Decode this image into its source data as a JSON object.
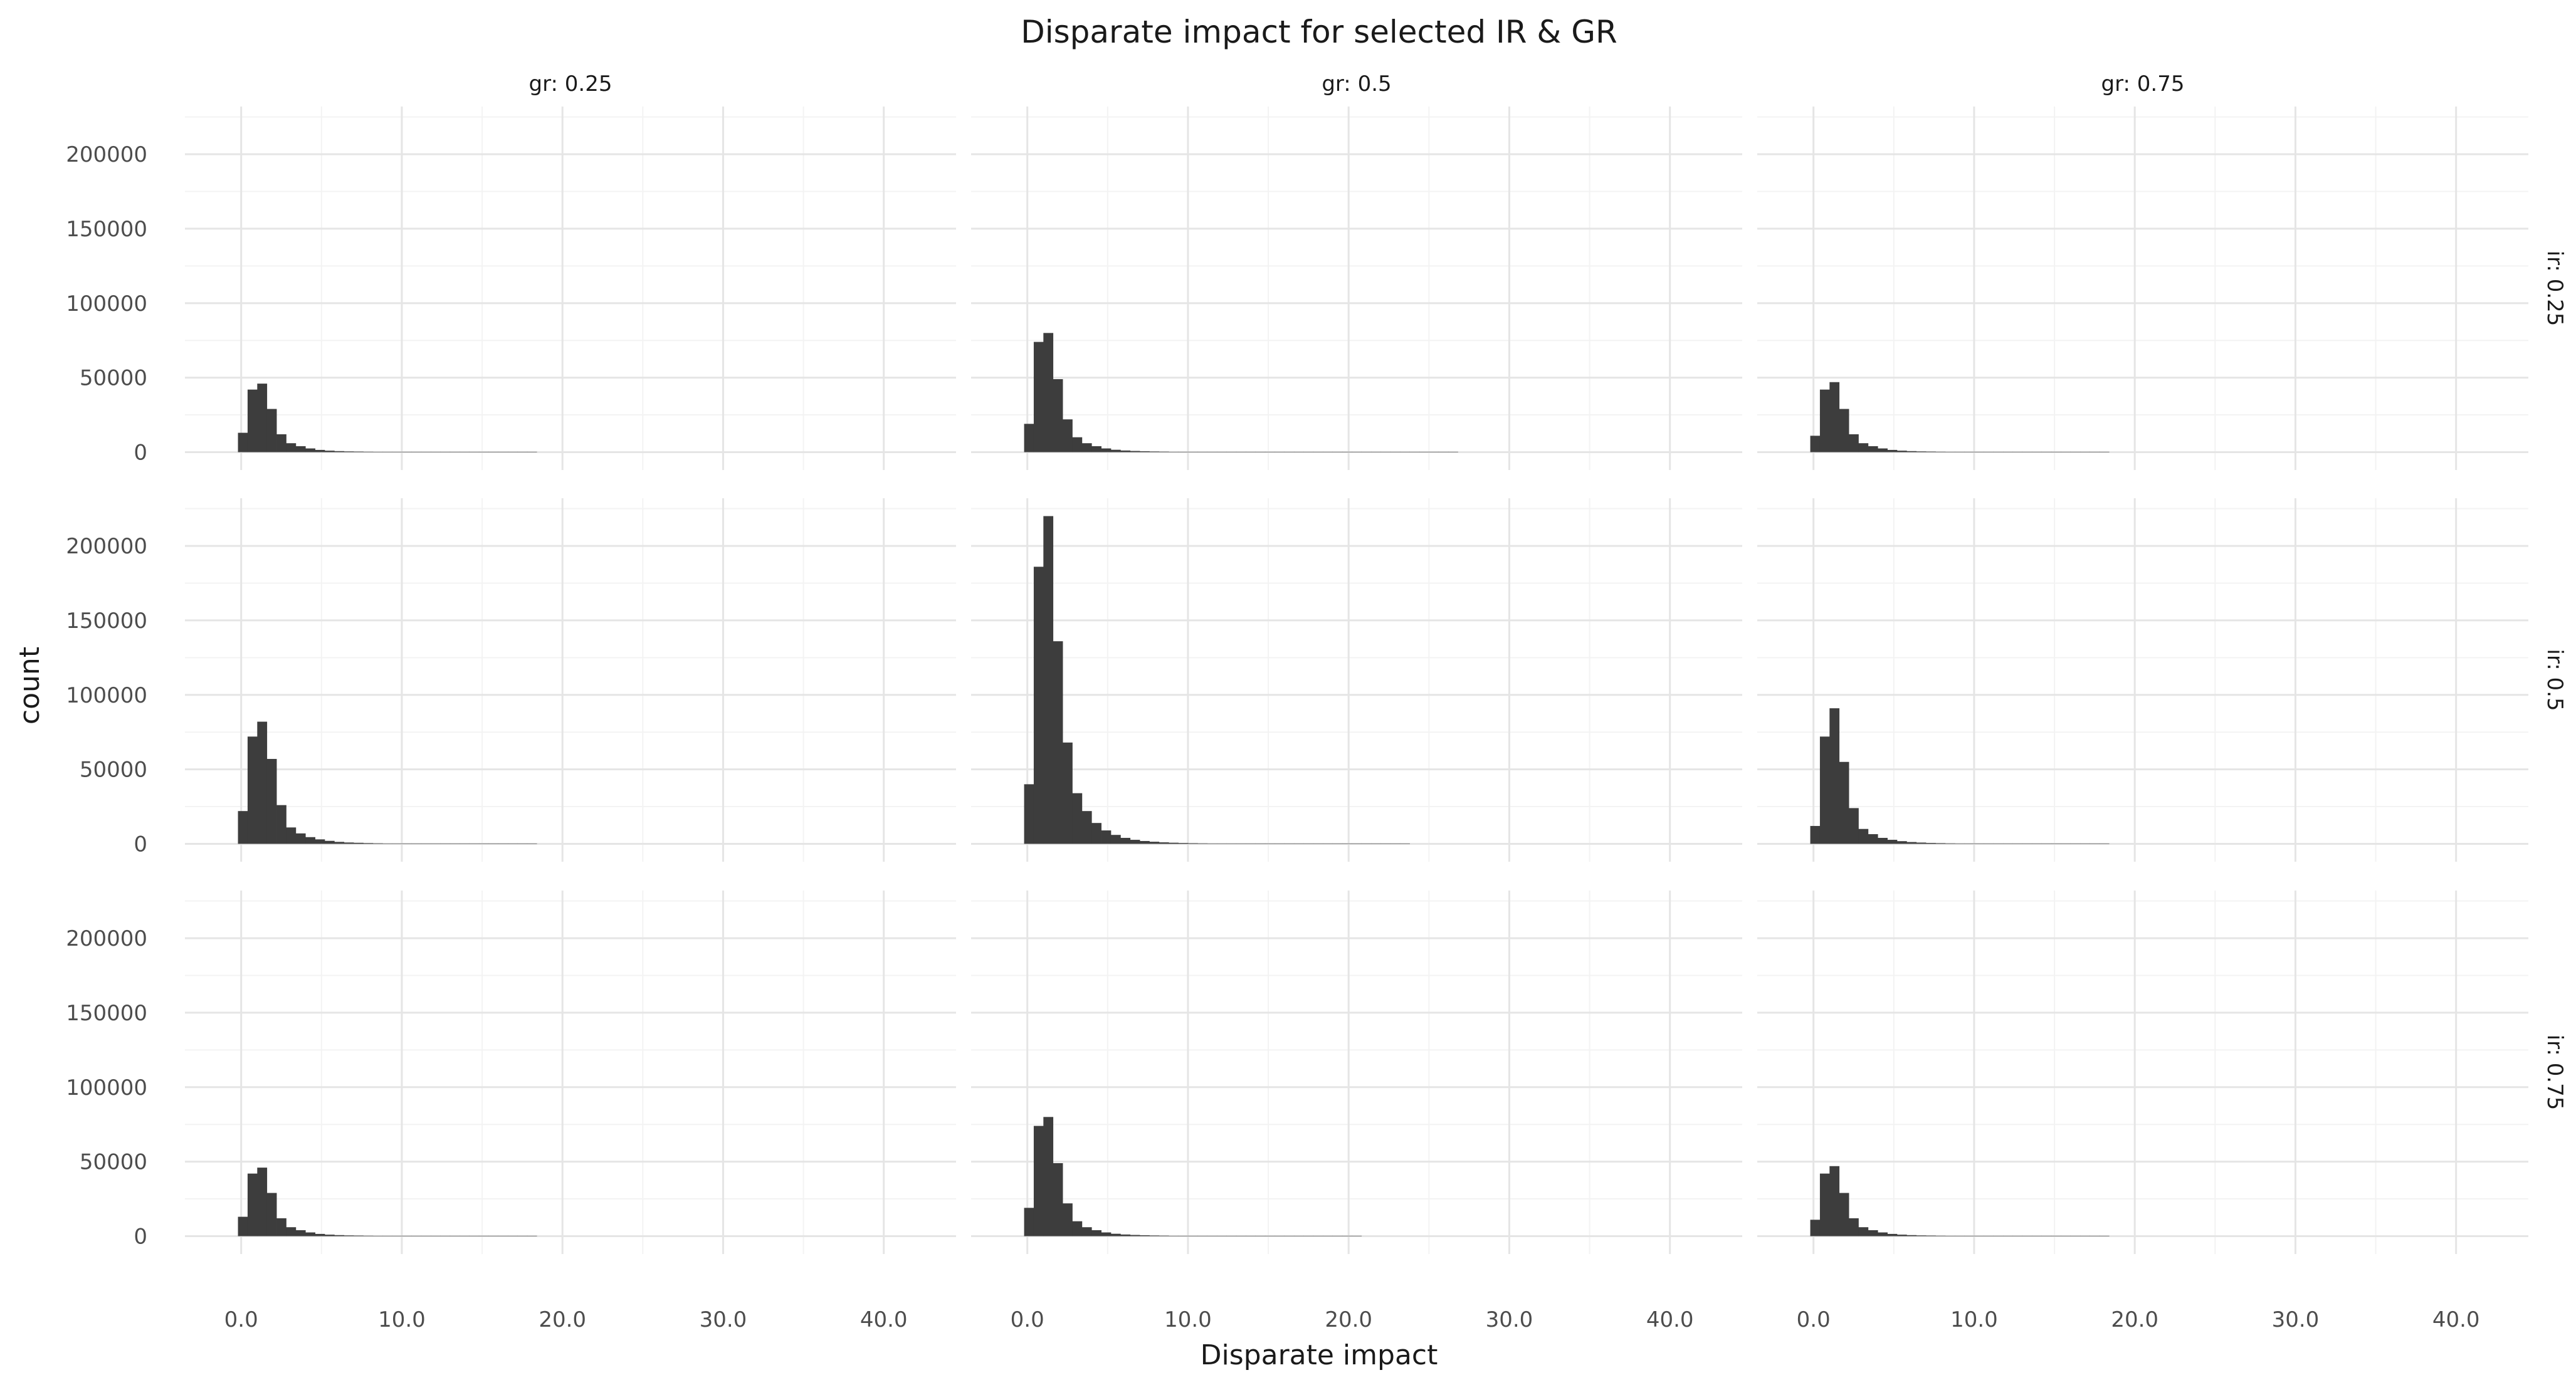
{
  "chart_data": {
    "type": "bar",
    "title": "Disparate impact for selected IR & GR",
    "xlabel": "Disparate impact",
    "ylabel": "count",
    "xlim": [
      -3.5,
      44.5
    ],
    "ylim": [
      -12000,
      232000
    ],
    "x_ticks": [
      0,
      10,
      20,
      30,
      40
    ],
    "x_tick_labels": [
      "0.0",
      "10.0",
      "20.0",
      "30.0",
      "40.0"
    ],
    "y_ticks": [
      0,
      50000,
      100000,
      150000,
      200000
    ],
    "y_tick_labels": [
      "0",
      "50000",
      "100000",
      "150000",
      "200000"
    ],
    "grid": true,
    "bin_width": 0.6,
    "bin_start": -0.2,
    "column_labels": [
      "gr: 0.25",
      "gr: 0.5",
      "gr: 0.75"
    ],
    "row_labels": [
      "ir: 0.25",
      "ir: 0.5",
      "ir: 0.75"
    ],
    "panels": [
      {
        "row": 0,
        "col": 0,
        "counts": [
          13000,
          42000,
          46000,
          29000,
          12000,
          6000,
          4000,
          2500,
          1500,
          1000,
          700,
          500,
          400,
          300,
          200,
          150,
          100,
          80,
          60,
          40,
          30,
          20,
          15,
          10,
          10,
          8,
          6,
          5,
          4,
          3,
          2
        ]
      },
      {
        "row": 0,
        "col": 1,
        "counts": [
          19000,
          74000,
          80000,
          49000,
          22000,
          10000,
          6000,
          4000,
          2500,
          1600,
          1100,
          800,
          600,
          450,
          350,
          250,
          200,
          150,
          110,
          80,
          60,
          45,
          35,
          25,
          20,
          15,
          12,
          10,
          8,
          6,
          5,
          4,
          3,
          3,
          2,
          2,
          2,
          1,
          1,
          1,
          1,
          1,
          1,
          1,
          1
        ]
      },
      {
        "row": 0,
        "col": 2,
        "counts": [
          11000,
          42000,
          47000,
          29000,
          12000,
          6000,
          4000,
          2500,
          1500,
          1000,
          700,
          500,
          400,
          300,
          200,
          150,
          100,
          80,
          60,
          40,
          30,
          20,
          15,
          10,
          10,
          8,
          6,
          5,
          4,
          3,
          2
        ]
      },
      {
        "row": 1,
        "col": 0,
        "counts": [
          22000,
          72000,
          82000,
          57000,
          26000,
          11000,
          7000,
          4500,
          3000,
          2000,
          1300,
          900,
          700,
          500,
          350,
          250,
          180,
          130,
          90,
          60,
          45,
          30,
          20,
          15,
          10,
          8,
          6,
          5,
          4,
          3,
          2
        ]
      },
      {
        "row": 1,
        "col": 1,
        "counts": [
          40000,
          186000,
          220000,
          136000,
          68000,
          34000,
          22000,
          14000,
          9000,
          6000,
          4000,
          2700,
          1900,
          1400,
          1000,
          750,
          560,
          420,
          320,
          240,
          180,
          140,
          110,
          85,
          65,
          50,
          40,
          32,
          25,
          20,
          16,
          13,
          10,
          8,
          6,
          5,
          4,
          3,
          3,
          2
        ]
      },
      {
        "row": 1,
        "col": 2,
        "counts": [
          12000,
          72000,
          91000,
          55000,
          24000,
          10000,
          6500,
          4000,
          2700,
          1800,
          1200,
          850,
          600,
          450,
          320,
          230,
          170,
          120,
          85,
          60,
          45,
          32,
          24,
          18,
          14,
          10,
          8,
          6,
          4,
          3,
          2
        ]
      },
      {
        "row": 2,
        "col": 0,
        "counts": [
          13000,
          42000,
          46000,
          29000,
          12000,
          6000,
          4000,
          2500,
          1500,
          1000,
          700,
          500,
          400,
          300,
          200,
          150,
          100,
          80,
          60,
          40,
          30,
          20,
          15,
          10,
          10,
          8,
          6,
          5,
          4,
          3,
          2
        ]
      },
      {
        "row": 2,
        "col": 1,
        "counts": [
          19000,
          74000,
          80000,
          49000,
          22000,
          10000,
          6000,
          4000,
          2500,
          1600,
          1100,
          800,
          600,
          450,
          350,
          250,
          200,
          150,
          110,
          80,
          60,
          45,
          35,
          25,
          20,
          15,
          12,
          10,
          8,
          6,
          5,
          4,
          3,
          3,
          2
        ]
      },
      {
        "row": 2,
        "col": 2,
        "counts": [
          11000,
          42000,
          47000,
          29000,
          12000,
          6000,
          4000,
          2500,
          1500,
          1000,
          700,
          500,
          400,
          300,
          200,
          150,
          100,
          80,
          60,
          40,
          30,
          20,
          15,
          10,
          10,
          8,
          6,
          5,
          4,
          3,
          2
        ]
      }
    ]
  }
}
